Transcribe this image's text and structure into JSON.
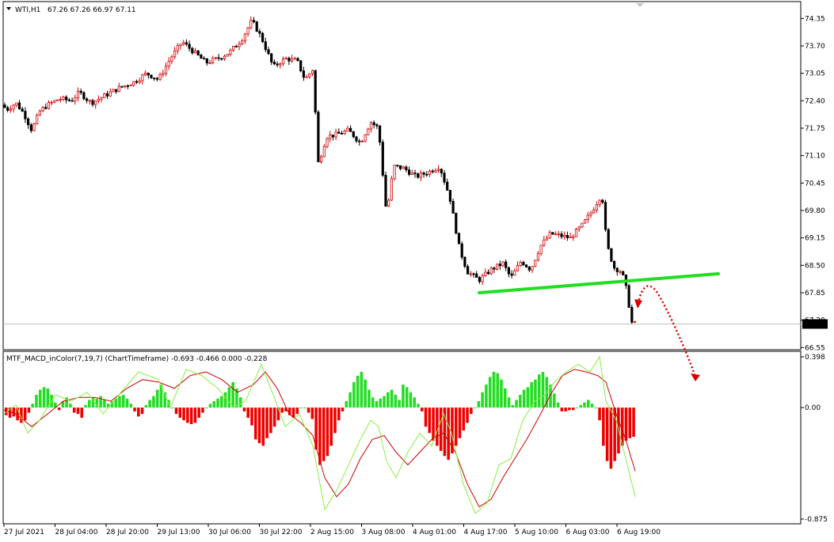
{
  "header": {
    "symbol_label": "WTI,H1",
    "ohlc_label": "67.26 67.26 66.97 67.11"
  },
  "indicator": {
    "label": "MTF_MACD_inColor(7,19,7) (ChartTimeframe) -0.693 -0.466 0.000 -0.228"
  },
  "colors": {
    "bull": "#d40000",
    "bear": "#000000",
    "trendline": "#22dd22",
    "hist_pos": "#22dd22",
    "hist_neg": "#ee0000",
    "macd_line": "#88ee44",
    "signal_line": "#cc0000",
    "annotation_arrow": "#dd0000",
    "price_marker_bg": "#000000",
    "price_marker_fg": "#ffffff"
  },
  "chart_data": [
    {
      "type": "candlestick",
      "symbol": "WTI",
      "timeframe": "H1",
      "price_axis": {
        "ticks": [
          "74.35",
          "73.70",
          "73.05",
          "72.40",
          "71.75",
          "71.10",
          "70.45",
          "69.80",
          "69.15",
          "68.50",
          "67.85",
          "67.20",
          "66.55"
        ],
        "ylim": [
          66.5,
          74.75
        ]
      },
      "current_price": "67.11",
      "time_axis": {
        "ticks": [
          "27 Jul 2021",
          "28 Jul 04:00",
          "28 Jul 20:00",
          "29 Jul 13:00",
          "30 Jul 06:00",
          "30 Jul 22:00",
          "2 Aug 15:00",
          "3 Aug 08:00",
          "4 Aug 01:00",
          "4 Aug 17:00",
          "5 Aug 10:00",
          "6 Aug 03:00",
          "6 Aug 19:00"
        ]
      },
      "price_path": [
        [
          0,
          72.3
        ],
        [
          10,
          72.2
        ],
        [
          20,
          72.35
        ],
        [
          30,
          72.1
        ],
        [
          40,
          71.7
        ],
        [
          50,
          72.15
        ],
        [
          60,
          72.3
        ],
        [
          75,
          72.45
        ],
        [
          90,
          72.4
        ],
        [
          100,
          72.6
        ],
        [
          115,
          72.35
        ],
        [
          130,
          72.5
        ],
        [
          150,
          72.7
        ],
        [
          170,
          72.85
        ],
        [
          185,
          73.05
        ],
        [
          200,
          72.9
        ],
        [
          215,
          73.4
        ],
        [
          230,
          73.8
        ],
        [
          245,
          73.55
        ],
        [
          260,
          73.3
        ],
        [
          275,
          73.4
        ],
        [
          290,
          73.55
        ],
        [
          305,
          73.85
        ],
        [
          318,
          74.3
        ],
        [
          330,
          73.9
        ],
        [
          345,
          73.2
        ],
        [
          360,
          73.4
        ],
        [
          375,
          73.35
        ],
        [
          385,
          72.9
        ],
        [
          395,
          73.15
        ],
        [
          402,
          70.9
        ],
        [
          412,
          71.55
        ],
        [
          425,
          71.6
        ],
        [
          440,
          71.7
        ],
        [
          455,
          71.4
        ],
        [
          468,
          71.9
        ],
        [
          478,
          71.75
        ],
        [
          488,
          69.7
        ],
        [
          497,
          70.85
        ],
        [
          510,
          70.8
        ],
        [
          525,
          70.6
        ],
        [
          540,
          70.7
        ],
        [
          555,
          70.85
        ],
        [
          568,
          70.1
        ],
        [
          580,
          68.9
        ],
        [
          590,
          68.35
        ],
        [
          605,
          68.15
        ],
        [
          620,
          68.4
        ],
        [
          635,
          68.55
        ],
        [
          645,
          68.2
        ],
        [
          658,
          68.6
        ],
        [
          670,
          68.4
        ],
        [
          682,
          68.95
        ],
        [
          695,
          69.25
        ],
        [
          708,
          69.2
        ],
        [
          720,
          69.15
        ],
        [
          735,
          69.45
        ],
        [
          748,
          69.8
        ],
        [
          760,
          70.2
        ],
        [
          766,
          69.0
        ],
        [
          775,
          68.45
        ],
        [
          785,
          68.35
        ],
        [
          792,
          67.85
        ],
        [
          797,
          67.15
        ],
        [
          802,
          67.11
        ]
      ],
      "trendline": {
        "from_x": 605,
        "from_price": 67.85,
        "to_x": 907,
        "to_price": 68.3
      }
    },
    {
      "type": "histogram+line",
      "name": "MTF_MACD_inColor(7,19,7)",
      "y_axis": {
        "ticks": [
          "0.398",
          "0.00",
          "-0.875"
        ],
        "ylim": [
          -0.875,
          0.398
        ]
      },
      "values": {
        "macd": -0.693,
        "signal": -0.466,
        "level": 0.0,
        "histogram": -0.228
      },
      "histogram": [
        -0.06,
        -0.08,
        -0.07,
        -0.1,
        -0.12,
        -0.1,
        -0.04,
        0.03,
        0.1,
        0.14,
        0.16,
        0.15,
        0.1,
        0.04,
        -0.02,
        0.05,
        0.08,
        0.03,
        -0.04,
        -0.05,
        -0.08,
        0.02,
        0.06,
        0.08,
        0.07,
        0.09,
        0.06,
        0.03,
        0.05,
        0.07,
        0.09,
        0.1,
        0.07,
        0.03,
        -0.03,
        -0.07,
        -0.05,
        0.02,
        0.06,
        0.09,
        0.14,
        0.18,
        0.12,
        0.06,
        0.0,
        -0.05,
        -0.08,
        -0.1,
        -0.12,
        -0.13,
        -0.12,
        -0.08,
        -0.04,
        0.0,
        0.03,
        0.05,
        0.07,
        0.09,
        0.12,
        0.16,
        0.2,
        0.15,
        0.08,
        -0.03,
        -0.08,
        -0.14,
        -0.25,
        -0.28,
        -0.3,
        -0.24,
        -0.2,
        -0.15,
        -0.1,
        -0.04,
        -0.03,
        -0.06,
        -0.08,
        -0.05,
        0.0,
        0.0,
        -0.04,
        -0.09,
        -0.33,
        -0.45,
        -0.42,
        -0.38,
        -0.3,
        -0.2,
        -0.1,
        -0.03,
        0.05,
        0.12,
        0.2,
        0.25,
        0.28,
        0.22,
        0.14,
        0.08,
        0.05,
        0.07,
        0.09,
        0.12,
        0.14,
        0.1,
        0.06,
        0.18,
        0.16,
        0.12,
        0.08,
        0.03,
        -0.03,
        -0.15,
        -0.2,
        -0.26,
        -0.3,
        -0.34,
        -0.38,
        -0.41,
        -0.36,
        -0.3,
        -0.24,
        -0.18,
        -0.12,
        -0.05,
        0.0,
        0.05,
        0.12,
        0.18,
        0.24,
        0.28,
        0.27,
        0.22,
        0.15,
        0.08,
        0.02,
        0.06,
        0.1,
        0.14,
        0.16,
        0.2,
        0.22,
        0.26,
        0.28,
        0.24,
        0.18,
        0.11,
        0.04,
        -0.03,
        -0.03,
        -0.02,
        -0.02,
        0.0,
        0.02,
        0.04,
        0.06,
        0.03,
        0.0,
        -0.1,
        -0.3,
        -0.42,
        -0.48,
        -0.42,
        -0.36,
        -0.3,
        -0.26,
        -0.24,
        -0.23
      ],
      "macd_line": [
        [
          5,
          -0.05
        ],
        [
          20,
          0.02
        ],
        [
          35,
          -0.2
        ],
        [
          50,
          -0.1
        ],
        [
          70,
          0.1
        ],
        [
          90,
          0.05
        ],
        [
          110,
          0.12
        ],
        [
          130,
          -0.05
        ],
        [
          150,
          0.1
        ],
        [
          175,
          0.28
        ],
        [
          200,
          0.22
        ],
        [
          215,
          0.0
        ],
        [
          235,
          0.3
        ],
        [
          255,
          0.25
        ],
        [
          275,
          0.15
        ],
        [
          295,
          0.0
        ],
        [
          310,
          0.05
        ],
        [
          330,
          0.34
        ],
        [
          345,
          0.1
        ],
        [
          360,
          -0.15
        ],
        [
          378,
          -0.05
        ],
        [
          395,
          -0.3
        ],
        [
          410,
          -0.8
        ],
        [
          425,
          -0.65
        ],
        [
          440,
          -0.45
        ],
        [
          455,
          -0.25
        ],
        [
          468,
          -0.1
        ],
        [
          478,
          -0.15
        ],
        [
          488,
          -0.42
        ],
        [
          500,
          -0.55
        ],
        [
          515,
          -0.35
        ],
        [
          530,
          -0.2
        ],
        [
          545,
          -0.3
        ],
        [
          560,
          -0.05
        ],
        [
          570,
          -0.2
        ],
        [
          585,
          -0.6
        ],
        [
          600,
          -0.83
        ],
        [
          615,
          -0.75
        ],
        [
          630,
          -0.45
        ],
        [
          645,
          -0.4
        ],
        [
          660,
          -0.1
        ],
        [
          675,
          0.05
        ],
        [
          688,
          0.1
        ],
        [
          700,
          0.2
        ],
        [
          715,
          0.28
        ],
        [
          730,
          0.34
        ],
        [
          745,
          0.28
        ],
        [
          757,
          0.4
        ],
        [
          765,
          0.05
        ],
        [
          778,
          -0.1
        ],
        [
          790,
          -0.4
        ],
        [
          802,
          -0.7
        ]
      ],
      "signal_line": [
        [
          5,
          -0.02
        ],
        [
          20,
          -0.05
        ],
        [
          40,
          -0.15
        ],
        [
          60,
          -0.05
        ],
        [
          80,
          0.05
        ],
        [
          100,
          0.08
        ],
        [
          120,
          0.08
        ],
        [
          140,
          0.05
        ],
        [
          160,
          0.15
        ],
        [
          180,
          0.22
        ],
        [
          200,
          0.2
        ],
        [
          220,
          0.15
        ],
        [
          240,
          0.25
        ],
        [
          260,
          0.28
        ],
        [
          280,
          0.22
        ],
        [
          300,
          0.12
        ],
        [
          320,
          0.18
        ],
        [
          335,
          0.28
        ],
        [
          350,
          0.15
        ],
        [
          365,
          -0.05
        ],
        [
          380,
          -0.12
        ],
        [
          395,
          -0.22
        ],
        [
          410,
          -0.55
        ],
        [
          425,
          -0.7
        ],
        [
          440,
          -0.6
        ],
        [
          455,
          -0.4
        ],
        [
          470,
          -0.25
        ],
        [
          485,
          -0.22
        ],
        [
          500,
          -0.35
        ],
        [
          515,
          -0.45
        ],
        [
          530,
          -0.35
        ],
        [
          545,
          -0.25
        ],
        [
          560,
          -0.2
        ],
        [
          575,
          -0.35
        ],
        [
          590,
          -0.6
        ],
        [
          605,
          -0.78
        ],
        [
          620,
          -0.72
        ],
        [
          635,
          -0.55
        ],
        [
          650,
          -0.4
        ],
        [
          665,
          -0.25
        ],
        [
          680,
          -0.08
        ],
        [
          695,
          0.1
        ],
        [
          710,
          0.25
        ],
        [
          725,
          0.3
        ],
        [
          740,
          0.28
        ],
        [
          755,
          0.25
        ],
        [
          765,
          0.2
        ],
        [
          778,
          -0.05
        ],
        [
          790,
          -0.25
        ],
        [
          802,
          -0.5
        ]
      ]
    }
  ]
}
